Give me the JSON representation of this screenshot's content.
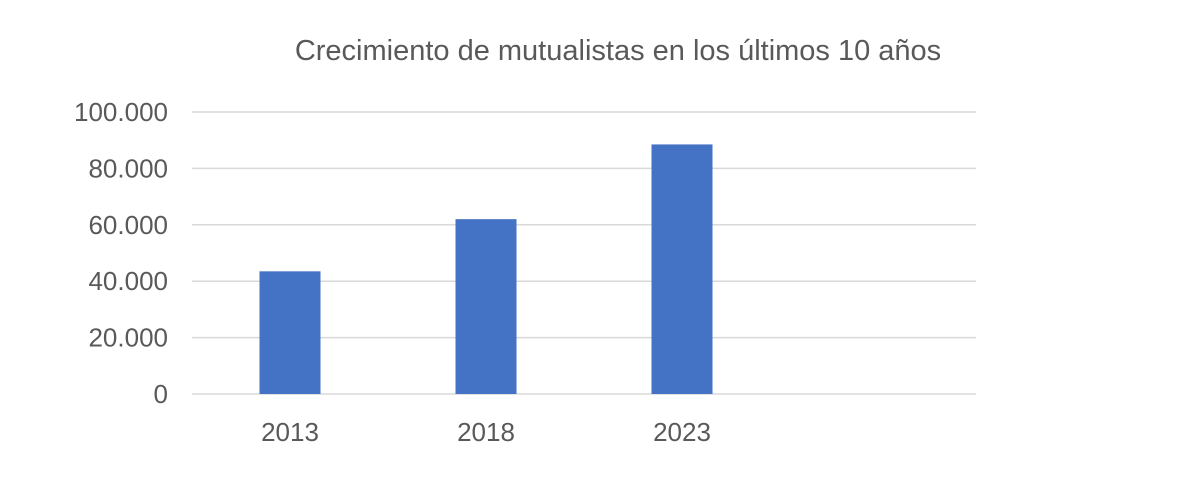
{
  "chart_data": {
    "type": "bar",
    "title": "Crecimiento de mutualistas en los últimos 10 años",
    "categories": [
      "2013",
      "2018",
      "2023"
    ],
    "values": [
      43500,
      62000,
      88500
    ],
    "ylim": [
      0,
      100000
    ],
    "yticks": [
      0,
      20000,
      40000,
      60000,
      80000,
      100000
    ],
    "ytick_labels": [
      "0",
      "20.000",
      "40.000",
      "60.000",
      "80.000",
      "100.000"
    ],
    "xlabel": "",
    "ylabel": "",
    "grid": true,
    "legend": "none",
    "bar_color": "#4472c4"
  }
}
